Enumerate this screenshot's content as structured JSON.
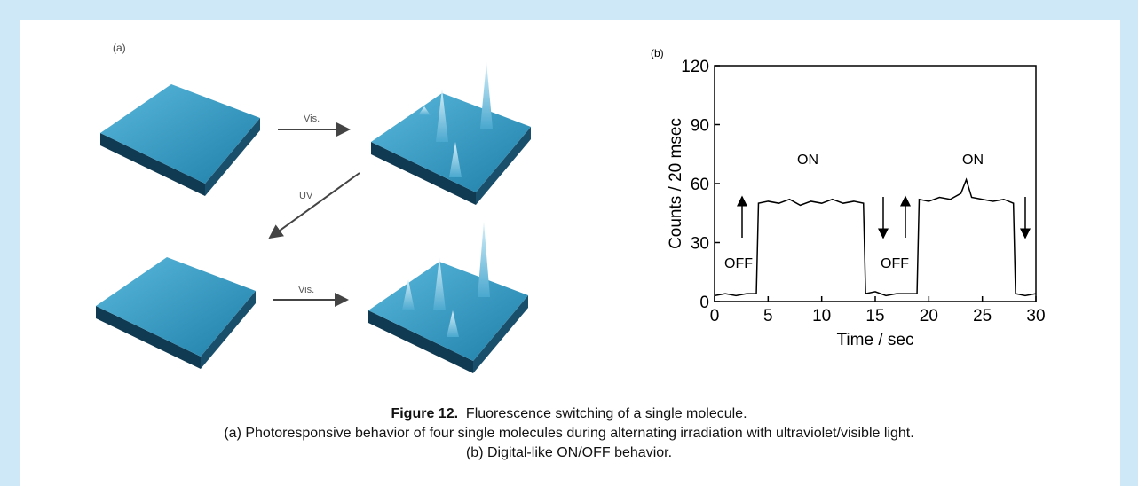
{
  "panel_a": {
    "label": "(a)",
    "arrows": [
      "Vis.",
      "UV",
      "Vis."
    ]
  },
  "chart_data": {
    "type": "line",
    "panel_label": "(b)",
    "x_label": "Time / sec",
    "y_label": "Counts / 20 msec",
    "x": [
      0,
      1,
      2,
      3,
      3.9,
      4.1,
      5,
      6,
      7,
      8,
      9,
      10,
      11,
      12,
      13,
      13.9,
      14.1,
      15,
      16,
      17,
      18,
      18.9,
      19.1,
      20,
      21,
      22,
      23,
      23.5,
      24,
      25,
      26,
      27,
      27.9,
      28.1,
      29,
      30
    ],
    "values": [
      3,
      4,
      3,
      4,
      4,
      50,
      51,
      50,
      52,
      49,
      51,
      50,
      52,
      50,
      51,
      50,
      4,
      5,
      3,
      4,
      4,
      4,
      52,
      51,
      53,
      52,
      55,
      62,
      53,
      52,
      51,
      52,
      50,
      4,
      3,
      4
    ],
    "color": "#000000",
    "xlim": [
      0,
      30
    ],
    "xticks": [
      0,
      5,
      10,
      15,
      20,
      25,
      30
    ],
    "ylim": [
      0,
      120
    ],
    "yticks": [
      0,
      30,
      60,
      90,
      120
    ],
    "annotations": [
      "OFF",
      "ON",
      "OFF",
      "ON"
    ]
  },
  "caption": {
    "figure": "Figure 12.",
    "title": "Fluorescence switching of a single molecule.",
    "line_a": "(a) Photoresponsive behavior of four single molecules during alternating irradiation with ultraviolet/visible light.",
    "line_b": "(b) Digital-like ON/OFF behavior."
  }
}
